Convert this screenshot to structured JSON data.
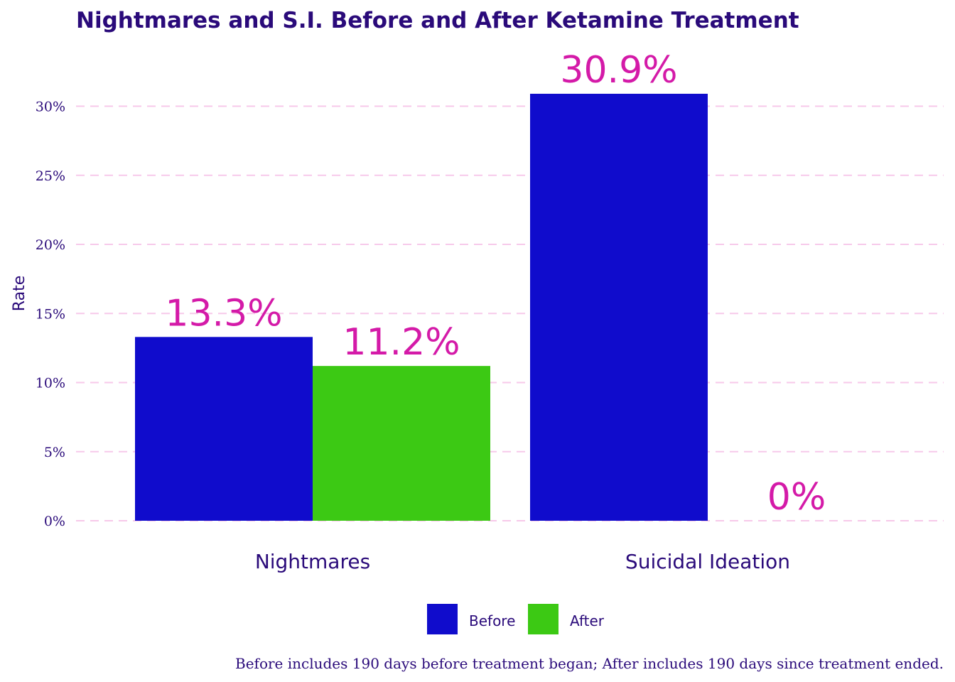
{
  "chart_data": {
    "type": "bar",
    "title": "Nightmares and S.I. Before and After Ketamine Treatment",
    "ylabel": "Rate",
    "xlabel": "",
    "categories": [
      "Nightmares",
      "Suicidal Ideation"
    ],
    "series": [
      {
        "name": "Before",
        "values": [
          13.3,
          30.9
        ],
        "labels": [
          "13.3%",
          "30.9%"
        ],
        "color": "#100ccc"
      },
      {
        "name": "After",
        "values": [
          11.2,
          0
        ],
        "labels": [
          "11.2%",
          "0%"
        ],
        "color": "#3cc914"
      }
    ],
    "ylim": [
      0,
      31
    ],
    "yticks": [
      0,
      5,
      10,
      15,
      20,
      25,
      30
    ],
    "ytick_labels": [
      "0%",
      "5%",
      "10%",
      "15%",
      "20%",
      "25%",
      "30%"
    ],
    "grid": true,
    "legend_position": "bottom",
    "caption": "Before includes 190 days before treatment began; After includes 190 days since treatment ended."
  }
}
